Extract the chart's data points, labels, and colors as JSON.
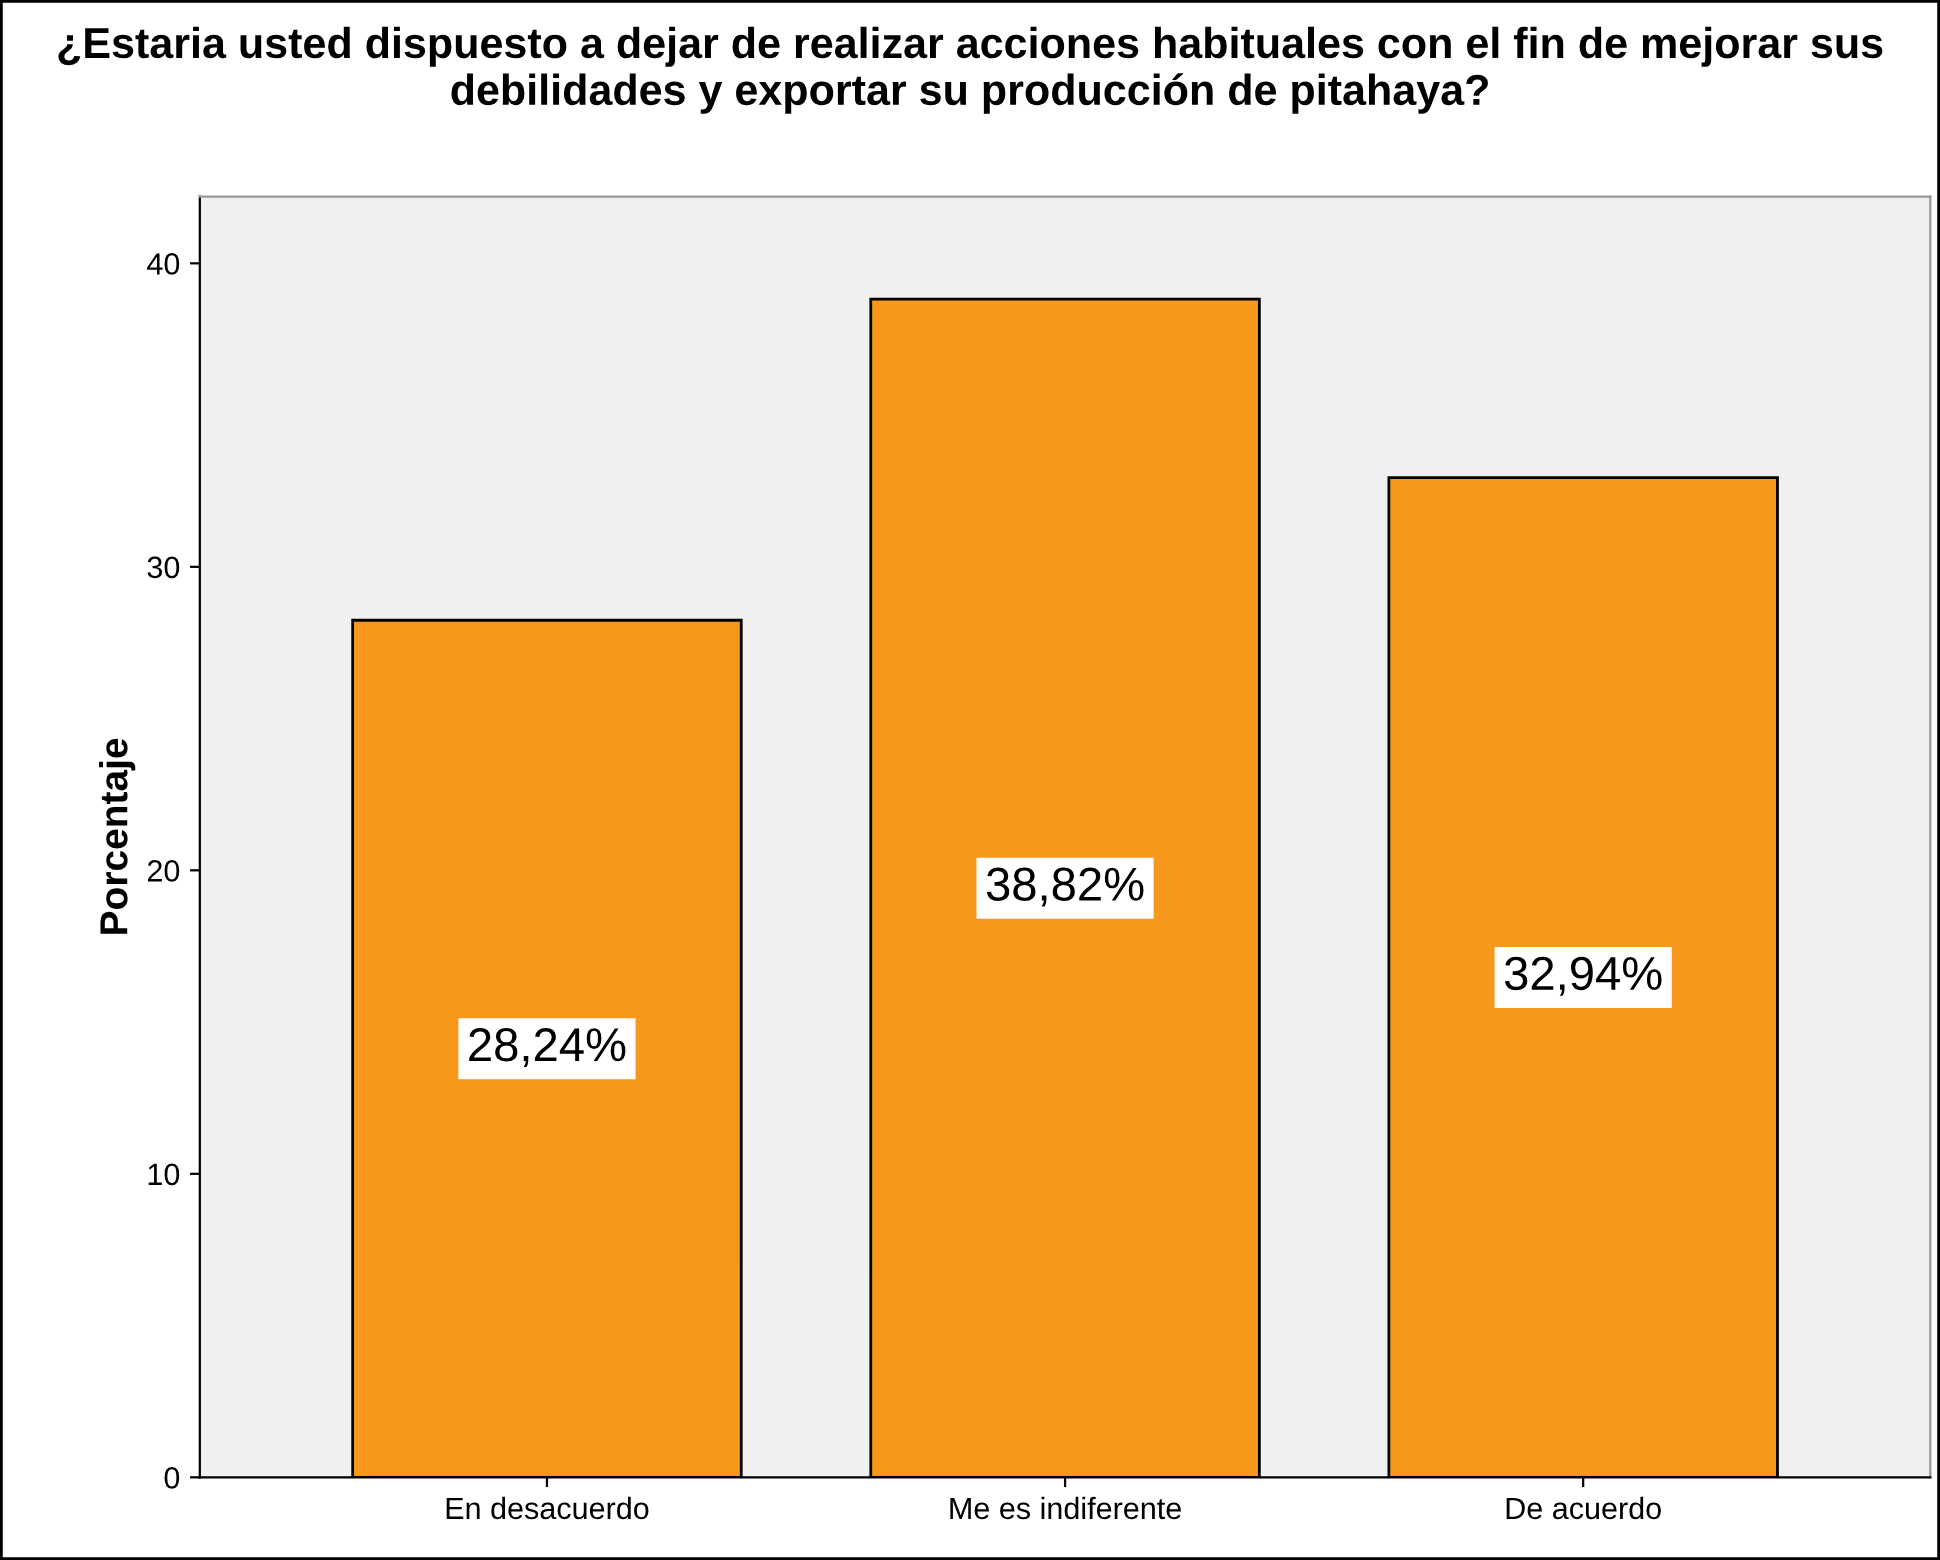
{
  "chart_data": {
    "type": "bar",
    "title": "¿Estaria usted dispuesto a dejar de realizar acciones habituales con el fin de mejorar sus debilidades y exportar su producción de pitahaya?",
    "ylabel": "Porcentaje",
    "categories": [
      "En desacuerdo",
      "Me es indiferente",
      "De acuerdo"
    ],
    "values": [
      28.24,
      38.82,
      32.94
    ],
    "value_labels": [
      "28,24%",
      "38,82%",
      "32,94%"
    ],
    "color": "#f7981d",
    "ylim": [
      0,
      42.2
    ],
    "yticks": [
      0,
      10,
      20,
      30,
      40
    ],
    "grid": false,
    "legend": false
  }
}
